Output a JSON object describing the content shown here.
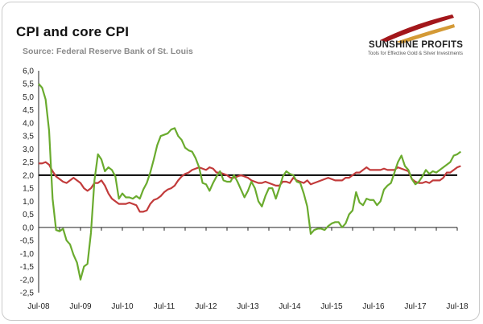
{
  "header": {
    "title": "CPI and core CPI",
    "source": "Source: Federal Reserve Bank of St. Louis"
  },
  "logo": {
    "brand": "SUNSHINE PROFITS",
    "tagline": "Tools for Effective Gold & Silver Investments",
    "colors": {
      "ray_dark": "#a3171b",
      "ray_gold": "#d49a36"
    }
  },
  "chart_data": {
    "type": "line",
    "title": "CPI and core CPI",
    "xlabel": "",
    "ylabel": "",
    "ylim": [
      -2.5,
      6.0
    ],
    "ytick_step": 0.5,
    "yticks": [
      "-2,5",
      "-2,0",
      "-1,5",
      "-1,0",
      "-0,5",
      "0,0",
      "0,5",
      "1,0",
      "1,5",
      "2,0",
      "2,5",
      "3,0",
      "3,5",
      "4,0",
      "4,5",
      "5,0",
      "5,5",
      "6,0"
    ],
    "xticks": [
      "Jul-08",
      "Jul-09",
      "Jul-10",
      "Jul-11",
      "Jul-12",
      "Jul-13",
      "Jul-14",
      "Jul-15",
      "Jul-16",
      "Jul-17",
      "Jul-18"
    ],
    "start_month": "Jul-08",
    "reference_line": {
      "value": 2.0,
      "color": "#000000"
    },
    "series": [
      {
        "name": "CPI",
        "color": "#6aab2e",
        "values": [
          5.5,
          5.35,
          4.9,
          3.7,
          1.1,
          -0.1,
          -0.15,
          -0.05,
          -0.5,
          -0.65,
          -1.05,
          -1.35,
          -2.0,
          -1.5,
          -1.4,
          -0.2,
          1.8,
          2.8,
          2.6,
          2.15,
          2.3,
          2.2,
          1.95,
          1.1,
          1.3,
          1.15,
          1.15,
          1.1,
          1.2,
          1.1,
          1.45,
          1.7,
          2.1,
          2.6,
          3.15,
          3.5,
          3.55,
          3.6,
          3.75,
          3.8,
          3.5,
          3.35,
          3.05,
          2.95,
          2.9,
          2.65,
          2.3,
          1.7,
          1.65,
          1.4,
          1.7,
          1.95,
          2.15,
          1.8,
          1.75,
          1.75,
          2.0,
          1.75,
          1.45,
          1.15,
          1.4,
          1.75,
          1.5,
          1.0,
          0.8,
          1.2,
          1.5,
          1.5,
          1.1,
          1.5,
          1.95,
          2.15,
          2.05,
          2.0,
          1.75,
          1.7,
          1.3,
          0.8,
          -0.25,
          -0.1,
          -0.05,
          -0.05,
          -0.1,
          0.05,
          0.15,
          0.2,
          0.2,
          0.0,
          0.15,
          0.5,
          0.65,
          1.35,
          0.95,
          0.85,
          1.1,
          1.05,
          1.05,
          0.85,
          1.0,
          1.45,
          1.6,
          1.7,
          2.1,
          2.5,
          2.75,
          2.35,
          2.2,
          1.85,
          1.65,
          1.75,
          1.95,
          2.2,
          2.05,
          2.15,
          2.1,
          2.2,
          2.3,
          2.4,
          2.5,
          2.75,
          2.8,
          2.9
        ]
      },
      {
        "name": "Core CPI",
        "color": "#c23b3b",
        "values": [
          2.45,
          2.45,
          2.5,
          2.4,
          2.15,
          1.95,
          1.85,
          1.75,
          1.7,
          1.8,
          1.9,
          1.8,
          1.7,
          1.5,
          1.4,
          1.5,
          1.7,
          1.7,
          1.8,
          1.6,
          1.3,
          1.1,
          1.0,
          0.9,
          0.9,
          0.9,
          0.95,
          0.9,
          0.85,
          0.6,
          0.6,
          0.65,
          0.9,
          1.05,
          1.1,
          1.2,
          1.35,
          1.45,
          1.5,
          1.6,
          1.8,
          1.95,
          2.05,
          2.1,
          2.2,
          2.25,
          2.3,
          2.25,
          2.2,
          2.3,
          2.25,
          2.1,
          2.1,
          2.05,
          2.0,
          1.9,
          1.9,
          1.95,
          2.0,
          1.95,
          1.9,
          1.8,
          1.75,
          1.7,
          1.7,
          1.75,
          1.7,
          1.65,
          1.6,
          1.6,
          1.75,
          1.75,
          1.7,
          1.9,
          1.8,
          1.75,
          1.7,
          1.8,
          1.65,
          1.7,
          1.75,
          1.8,
          1.85,
          1.9,
          1.85,
          1.8,
          1.8,
          1.8,
          1.9,
          1.9,
          2.0,
          2.1,
          2.1,
          2.2,
          2.3,
          2.2,
          2.2,
          2.2,
          2.2,
          2.25,
          2.2,
          2.2,
          2.2,
          2.3,
          2.25,
          2.2,
          2.15,
          1.85,
          1.75,
          1.7,
          1.7,
          1.75,
          1.7,
          1.8,
          1.8,
          1.8,
          1.9,
          2.1,
          2.1,
          2.2,
          2.3,
          2.35
        ]
      }
    ]
  }
}
